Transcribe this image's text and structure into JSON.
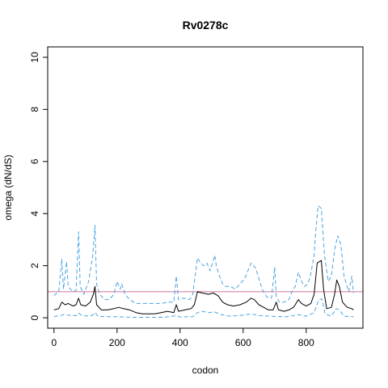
{
  "chart_data": {
    "type": "line",
    "title": "Rv0278c",
    "xlabel": "codon",
    "ylabel": "omega (dN/dS)",
    "xlim": [
      -20,
      980
    ],
    "ylim": [
      -0.4,
      10.4
    ],
    "x_ticks": [
      0,
      200,
      400,
      600,
      800
    ],
    "y_ticks": [
      0,
      2,
      4,
      6,
      8,
      10
    ],
    "grid": false,
    "legend": "none",
    "reference_line": {
      "y": 1,
      "color": "#d0739a"
    },
    "series": [
      {
        "role": "upper",
        "color": "#4aa3df",
        "style": "dashed",
        "points": [
          [
            0,
            0.85
          ],
          [
            15,
            1.0
          ],
          [
            25,
            2.25
          ],
          [
            30,
            1.1
          ],
          [
            40,
            2.15
          ],
          [
            45,
            1.2
          ],
          [
            60,
            1.0
          ],
          [
            70,
            1.05
          ],
          [
            78,
            3.3
          ],
          [
            83,
            1.2
          ],
          [
            95,
            0.9
          ],
          [
            110,
            1.4
          ],
          [
            123,
            2.4
          ],
          [
            130,
            3.55
          ],
          [
            135,
            1.3
          ],
          [
            145,
            0.9
          ],
          [
            160,
            0.7
          ],
          [
            175,
            0.7
          ],
          [
            190,
            0.9
          ],
          [
            200,
            1.4
          ],
          [
            210,
            1.1
          ],
          [
            215,
            1.3
          ],
          [
            225,
            0.9
          ],
          [
            240,
            0.7
          ],
          [
            260,
            0.55
          ],
          [
            280,
            0.55
          ],
          [
            300,
            0.55
          ],
          [
            320,
            0.55
          ],
          [
            340,
            0.55
          ],
          [
            360,
            0.6
          ],
          [
            380,
            0.6
          ],
          [
            388,
            1.6
          ],
          [
            395,
            0.7
          ],
          [
            410,
            0.75
          ],
          [
            430,
            0.7
          ],
          [
            440,
            0.9
          ],
          [
            450,
            1.8
          ],
          [
            455,
            2.3
          ],
          [
            465,
            2.1
          ],
          [
            475,
            2.0
          ],
          [
            485,
            2.1
          ],
          [
            495,
            1.8
          ],
          [
            505,
            2.2
          ],
          [
            510,
            2.4
          ],
          [
            515,
            2.0
          ],
          [
            525,
            1.6
          ],
          [
            535,
            1.3
          ],
          [
            545,
            1.2
          ],
          [
            560,
            1.2
          ],
          [
            575,
            1.1
          ],
          [
            590,
            1.3
          ],
          [
            605,
            1.5
          ],
          [
            615,
            1.8
          ],
          [
            625,
            2.1
          ],
          [
            640,
            1.9
          ],
          [
            650,
            1.5
          ],
          [
            660,
            1.1
          ],
          [
            675,
            0.8
          ],
          [
            690,
            0.75
          ],
          [
            700,
            1.95
          ],
          [
            705,
            0.8
          ],
          [
            715,
            0.6
          ],
          [
            730,
            0.6
          ],
          [
            745,
            0.7
          ],
          [
            755,
            1.0
          ],
          [
            765,
            1.2
          ],
          [
            775,
            1.75
          ],
          [
            785,
            1.4
          ],
          [
            795,
            1.2
          ],
          [
            805,
            1.3
          ],
          [
            815,
            1.7
          ],
          [
            825,
            2.4
          ],
          [
            830,
            3.3
          ],
          [
            838,
            4.3
          ],
          [
            848,
            4.2
          ],
          [
            858,
            2.4
          ],
          [
            870,
            1.4
          ],
          [
            880,
            1.6
          ],
          [
            890,
            2.6
          ],
          [
            900,
            3.15
          ],
          [
            910,
            2.8
          ],
          [
            920,
            1.6
          ],
          [
            935,
            1.0
          ],
          [
            945,
            1.6
          ],
          [
            950,
            0.95
          ]
        ]
      },
      {
        "role": "mean",
        "color": "#000000",
        "style": "solid",
        "points": [
          [
            0,
            0.3
          ],
          [
            15,
            0.35
          ],
          [
            25,
            0.6
          ],
          [
            35,
            0.5
          ],
          [
            45,
            0.55
          ],
          [
            60,
            0.45
          ],
          [
            70,
            0.5
          ],
          [
            78,
            0.75
          ],
          [
            85,
            0.5
          ],
          [
            100,
            0.45
          ],
          [
            115,
            0.6
          ],
          [
            125,
            0.9
          ],
          [
            130,
            1.2
          ],
          [
            135,
            0.5
          ],
          [
            150,
            0.3
          ],
          [
            170,
            0.3
          ],
          [
            190,
            0.35
          ],
          [
            205,
            0.4
          ],
          [
            220,
            0.35
          ],
          [
            240,
            0.3
          ],
          [
            260,
            0.2
          ],
          [
            280,
            0.15
          ],
          [
            300,
            0.15
          ],
          [
            320,
            0.15
          ],
          [
            340,
            0.2
          ],
          [
            360,
            0.25
          ],
          [
            380,
            0.2
          ],
          [
            388,
            0.5
          ],
          [
            395,
            0.25
          ],
          [
            415,
            0.3
          ],
          [
            435,
            0.35
          ],
          [
            445,
            0.5
          ],
          [
            455,
            1.0
          ],
          [
            470,
            0.95
          ],
          [
            490,
            0.9
          ],
          [
            505,
            0.95
          ],
          [
            520,
            0.85
          ],
          [
            535,
            0.6
          ],
          [
            550,
            0.5
          ],
          [
            570,
            0.45
          ],
          [
            590,
            0.5
          ],
          [
            610,
            0.6
          ],
          [
            625,
            0.75
          ],
          [
            635,
            0.7
          ],
          [
            650,
            0.5
          ],
          [
            665,
            0.4
          ],
          [
            680,
            0.3
          ],
          [
            695,
            0.3
          ],
          [
            705,
            0.6
          ],
          [
            712,
            0.3
          ],
          [
            730,
            0.25
          ],
          [
            745,
            0.3
          ],
          [
            760,
            0.4
          ],
          [
            775,
            0.7
          ],
          [
            785,
            0.55
          ],
          [
            800,
            0.45
          ],
          [
            815,
            0.55
          ],
          [
            825,
            0.9
          ],
          [
            835,
            2.1
          ],
          [
            848,
            2.2
          ],
          [
            855,
            1.1
          ],
          [
            865,
            0.35
          ],
          [
            880,
            0.4
          ],
          [
            890,
            0.9
          ],
          [
            897,
            1.45
          ],
          [
            905,
            1.2
          ],
          [
            915,
            0.6
          ],
          [
            930,
            0.4
          ],
          [
            945,
            0.35
          ],
          [
            950,
            0.3
          ]
        ]
      },
      {
        "role": "lower",
        "color": "#4aa3df",
        "style": "dashed",
        "points": [
          [
            0,
            0.05
          ],
          [
            20,
            0.08
          ],
          [
            30,
            0.12
          ],
          [
            45,
            0.1
          ],
          [
            70,
            0.08
          ],
          [
            78,
            0.18
          ],
          [
            90,
            0.07
          ],
          [
            120,
            0.08
          ],
          [
            130,
            0.2
          ],
          [
            140,
            0.05
          ],
          [
            200,
            0.04
          ],
          [
            250,
            0.02
          ],
          [
            300,
            0.02
          ],
          [
            350,
            0.02
          ],
          [
            388,
            0.08
          ],
          [
            400,
            0.03
          ],
          [
            440,
            0.04
          ],
          [
            455,
            0.2
          ],
          [
            470,
            0.25
          ],
          [
            490,
            0.2
          ],
          [
            510,
            0.22
          ],
          [
            530,
            0.12
          ],
          [
            560,
            0.06
          ],
          [
            600,
            0.1
          ],
          [
            625,
            0.15
          ],
          [
            650,
            0.08
          ],
          [
            700,
            0.05
          ],
          [
            740,
            0.04
          ],
          [
            775,
            0.12
          ],
          [
            800,
            0.06
          ],
          [
            825,
            0.2
          ],
          [
            840,
            0.7
          ],
          [
            850,
            0.72
          ],
          [
            860,
            0.15
          ],
          [
            880,
            0.06
          ],
          [
            895,
            0.35
          ],
          [
            905,
            0.3
          ],
          [
            920,
            0.06
          ],
          [
            950,
            0.04
          ]
        ]
      }
    ]
  }
}
